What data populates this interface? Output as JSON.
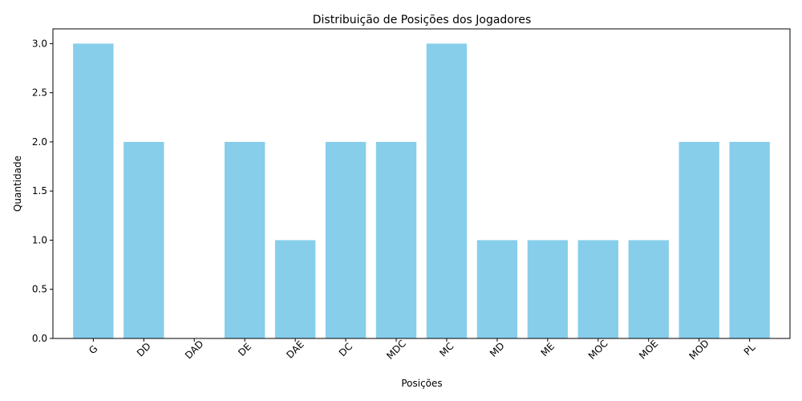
{
  "chart_data": {
    "type": "bar",
    "title": "Distribuição de Posições dos Jogadores",
    "xlabel": "Posições",
    "ylabel": "Quantidade",
    "categories": [
      "G",
      "DD",
      "DAD",
      "DE",
      "DAE",
      "DC",
      "MDC",
      "MC",
      "MD",
      "ME",
      "MOC",
      "MOE",
      "MOD",
      "PL"
    ],
    "values": [
      3,
      2,
      0,
      2,
      1,
      2,
      2,
      3,
      1,
      1,
      1,
      1,
      2,
      2
    ],
    "ylim": [
      0,
      3.15
    ],
    "yticks": [
      "0.0",
      "0.5",
      "1.0",
      "1.5",
      "2.0",
      "2.5",
      "3.0"
    ],
    "bar_color": "#87ceeb",
    "grid": false,
    "x_tick_rotation_deg": 45
  }
}
